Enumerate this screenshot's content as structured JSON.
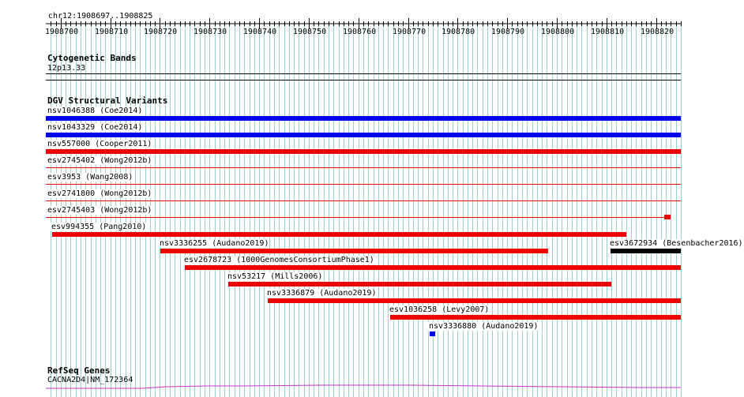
{
  "locus": "chr12:1908697..1908825",
  "ruler": {
    "ticks": [
      "1908700",
      "1908710",
      "1908720",
      "1908730",
      "1908740",
      "1908750",
      "1908760",
      "1908770",
      "1908780",
      "1908790",
      "1908800",
      "1908810",
      "1908820"
    ]
  },
  "cytoband": {
    "title": "Cytogenetic Bands",
    "band": "12p13.33"
  },
  "dgv": {
    "title": "DGV Structural Variants",
    "features": [
      {
        "label": "nsv1046388 (Coe2014)",
        "color": "#0000ee"
      },
      {
        "label": "nsv1043329 (Coe2014)",
        "color": "#0000ee"
      },
      {
        "label": "nsv557000 (Cooper2011)",
        "color": "#ee0000"
      },
      {
        "label": "esv2745402 (Wong2012b)",
        "color": "#ee0000"
      },
      {
        "label": "esv3953 (Wang2008)",
        "color": "#ee0000"
      },
      {
        "label": "esv2741800 (Wong2012b)",
        "color": "#ee0000"
      },
      {
        "label": "esv2745403 (Wong2012b)",
        "color": "#ee0000"
      },
      {
        "label": "esv994355 (Pang2010)",
        "color": "#ee0000"
      },
      {
        "label": "nsv3336255 (Audano2019)",
        "color": "#ee0000"
      },
      {
        "label": "esv3672934 (Besenbacher2016)",
        "color": "#000000"
      },
      {
        "label": "esv2678723 (1000GenomesConsortiumPhase1)",
        "color": "#ee0000"
      },
      {
        "label": "nsv53217 (Mills2006)",
        "color": "#ee0000"
      },
      {
        "label": "nsv3336879 (Audano2019)",
        "color": "#ee0000"
      },
      {
        "label": "esv1036258 (Levy2007)",
        "color": "#ee0000"
      },
      {
        "label": "nsv3336880 (Audano2019)",
        "color": "#0000ee"
      }
    ]
  },
  "refseq": {
    "title": "RefSeq Genes",
    "gene": "CACNA2D4|NM_172364",
    "color": "#cc33cc"
  },
  "colors": {
    "grid": "#9fd0d0",
    "ruler": "#000000"
  }
}
